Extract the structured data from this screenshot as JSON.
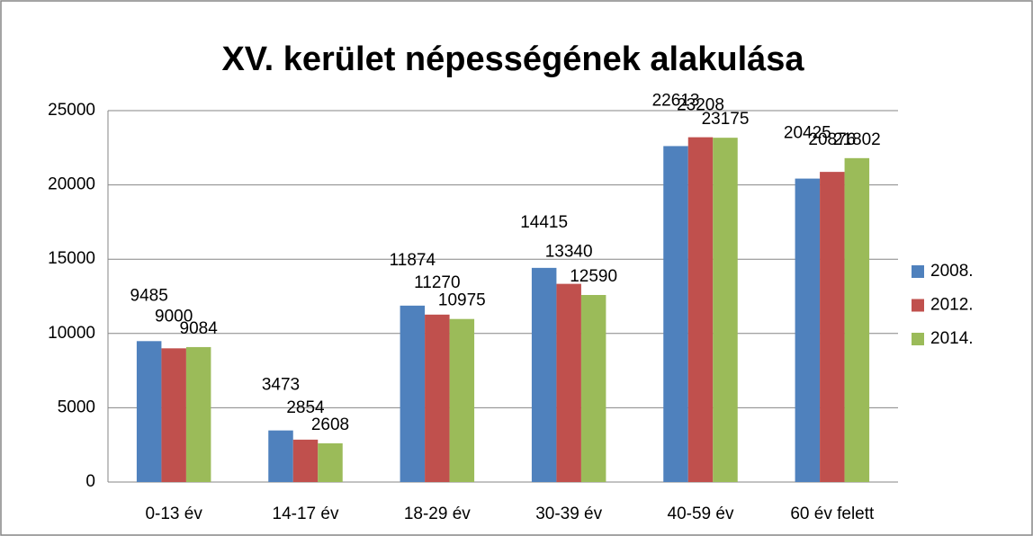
{
  "chart_data": {
    "type": "bar",
    "title": "XV. kerület népességének alakulása",
    "categories": [
      "0-13 év",
      "14-17 év",
      "18-29 év",
      "30-39 év",
      "40-59 év",
      "60 év felett"
    ],
    "series": [
      {
        "name": "2008.",
        "color": "#4f81bd",
        "values": [
          9485,
          3473,
          11874,
          14415,
          22613,
          20425
        ]
      },
      {
        "name": "2012.",
        "color": "#c0504d",
        "values": [
          9000,
          2854,
          11270,
          13340,
          23208,
          20876
        ]
      },
      {
        "name": "2014.",
        "color": "#9bbb59",
        "values": [
          9084,
          2608,
          10975,
          12590,
          23175,
          21802
        ]
      }
    ],
    "ylim": [
      0,
      25000
    ],
    "yticks": [
      0,
      5000,
      10000,
      15000,
      20000,
      25000
    ],
    "grid": true,
    "legend": "right"
  }
}
